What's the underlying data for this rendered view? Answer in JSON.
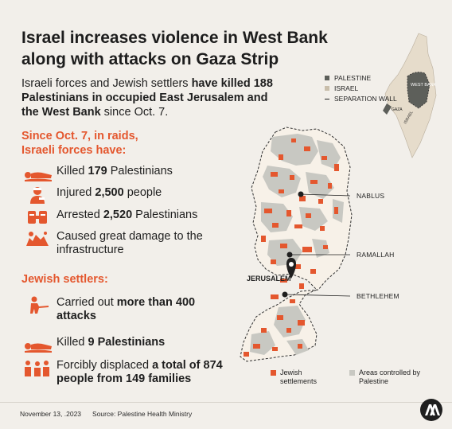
{
  "title": "Israel increases violence in West Bank along with attacks on Gaza Strip",
  "intro": {
    "part1": "Israeli forces and Jewish settlers ",
    "bold": "have killed 188 Palestinians in occupied East Jerusalem and the West Bank",
    "part2": " since Oct. 7."
  },
  "raids": {
    "heading": "Since Oct. 7, in raids, Israeli forces have:",
    "items": [
      {
        "pre": "Killed ",
        "bold": "179",
        "post": " Palestinians",
        "icon": "body-icon"
      },
      {
        "pre": "Injured ",
        "bold": "2,500",
        "post": " people",
        "icon": "injured-person-icon"
      },
      {
        "pre": "Arrested ",
        "bold": "2,520",
        "post": " Palestinians",
        "icon": "handcuffs-icon"
      },
      {
        "pre": "Caused great damage to the infrastructure",
        "bold": "",
        "post": "",
        "icon": "rubble-icon"
      }
    ]
  },
  "settlers": {
    "heading": "Jewish settlers:",
    "items": [
      {
        "pre": "Carried out ",
        "bold": "more than 400 attacks",
        "post": "",
        "icon": "gunman-icon"
      },
      {
        "pre": "Killed ",
        "bold": "9 Palestinians",
        "post": "",
        "icon": "body-icon"
      },
      {
        "pre": "Forcibly displaced ",
        "bold": "a total of 874 people from 149 families",
        "post": "",
        "icon": "family-icon"
      }
    ]
  },
  "inset_legend": {
    "palestine": "PALESTINE",
    "israel": "ISRAEL",
    "wall": "SEPARATION WALL"
  },
  "inset_labels": {
    "west_bank": "WEST BANK",
    "gaza": "GAZA",
    "israel": "ISRAEL"
  },
  "cities": {
    "nablus": "NABLUS",
    "ramallah": "RAMALLAH",
    "jerusalem": "JERUSALEM",
    "bethlehem": "BETHLEHEM"
  },
  "map_legend": {
    "settlements": "Jewish settlements",
    "palestine_areas": "Areas controlled by Palestine"
  },
  "colors": {
    "accent": "#e4572e",
    "palestine_area": "#c8c8c2",
    "westbank_land": "#f7f1e8",
    "israel_land": "#e6dccb",
    "inset_palestine": "#5d5f5a",
    "text": "#1f1f1f"
  },
  "footer": {
    "date": "November 13, .2023",
    "source": "Source: Palestine Health Ministry"
  }
}
